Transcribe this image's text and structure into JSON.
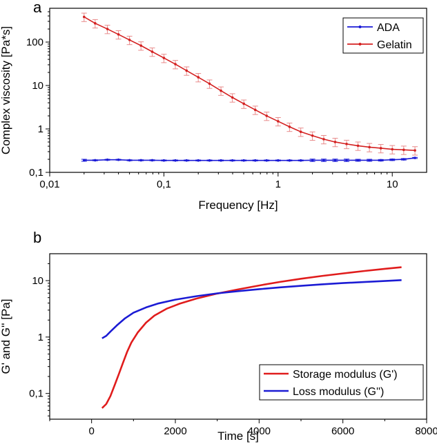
{
  "chart_data": [
    {
      "panel": "a",
      "type": "line",
      "title": "",
      "xlabel": "Frequency [Hz]",
      "ylabel": "Complex viscosity [Pa*s]",
      "xscale": "log",
      "yscale": "log",
      "xlim": [
        0.01,
        20
      ],
      "ylim": [
        0.1,
        600
      ],
      "xticks": [
        {
          "v": 0.01,
          "label": "0,01"
        },
        {
          "v": 0.1,
          "label": "0,1"
        },
        {
          "v": 1,
          "label": "1"
        },
        {
          "v": 10,
          "label": "10"
        }
      ],
      "yticks": [
        {
          "v": 0.1,
          "label": "0,1"
        },
        {
          "v": 1,
          "label": "1"
        },
        {
          "v": 10,
          "label": "10"
        },
        {
          "v": 100,
          "label": "100"
        }
      ],
      "legend_position": "top-right",
      "x": [
        0.02,
        0.025,
        0.032,
        0.04,
        0.05,
        0.063,
        0.079,
        0.1,
        0.126,
        0.158,
        0.2,
        0.251,
        0.316,
        0.398,
        0.501,
        0.631,
        0.794,
        1.0,
        1.26,
        1.58,
        2.0,
        2.51,
        3.16,
        3.98,
        5.01,
        6.31,
        7.94,
        10.0,
        12.6,
        15.8
      ],
      "series": [
        {
          "name": "ADA",
          "color": "#1a1ad6",
          "values": [
            0.19,
            0.19,
            0.195,
            0.195,
            0.19,
            0.19,
            0.19,
            0.188,
            0.188,
            0.188,
            0.188,
            0.188,
            0.188,
            0.188,
            0.188,
            0.188,
            0.188,
            0.188,
            0.188,
            0.188,
            0.19,
            0.19,
            0.19,
            0.19,
            0.19,
            0.19,
            0.19,
            0.195,
            0.2,
            0.215
          ],
          "errors": [
            0.01,
            0.005,
            0.005,
            0.005,
            0.005,
            0.005,
            0.005,
            0.005,
            0.005,
            0.005,
            0.005,
            0.005,
            0.005,
            0.005,
            0.005,
            0.005,
            0.005,
            0.005,
            0.005,
            0.005,
            0.012,
            0.012,
            0.012,
            0.012,
            0.01,
            0.01,
            0.008,
            0.008,
            0.008,
            0.006
          ]
        },
        {
          "name": "Gelatin",
          "color": "#d42020",
          "values": [
            380,
            270,
            200,
            150,
            112,
            83,
            60,
            43,
            31,
            22,
            15.5,
            11,
            7.6,
            5.3,
            3.8,
            2.75,
            2.0,
            1.5,
            1.12,
            0.86,
            0.7,
            0.58,
            0.5,
            0.45,
            0.41,
            0.38,
            0.36,
            0.34,
            0.33,
            0.32
          ]
        }
      ]
    },
    {
      "panel": "b",
      "type": "line",
      "title": "",
      "xlabel": "Time [s]",
      "ylabel": "G' and G'' [Pa]",
      "xscale": "linear",
      "yscale": "log",
      "xlim": [
        -1000,
        8000
      ],
      "ylim": [
        0.035,
        30
      ],
      "xticks": [
        {
          "v": 0,
          "label": "0"
        },
        {
          "v": 2000,
          "label": "2000"
        },
        {
          "v": 4000,
          "label": "4000"
        },
        {
          "v": 6000,
          "label": "6000"
        },
        {
          "v": 8000,
          "label": "8000"
        }
      ],
      "yticks": [
        {
          "v": 0.1,
          "label": "0,1"
        },
        {
          "v": 1,
          "label": "1"
        },
        {
          "v": 10,
          "label": "10"
        }
      ],
      "legend_position": "bottom-right",
      "series": [
        {
          "name": "Storage modulus (G')",
          "color": "#e01c1c",
          "x": [
            250,
            350,
            450,
            550,
            650,
            750,
            850,
            950,
            1100,
            1300,
            1500,
            1800,
            2100,
            2500,
            3000,
            3500,
            4000,
            4500,
            5000,
            5500,
            6000,
            6500,
            7000,
            7400
          ],
          "values": [
            0.055,
            0.065,
            0.09,
            0.14,
            0.22,
            0.35,
            0.55,
            0.8,
            1.2,
            1.8,
            2.4,
            3.2,
            3.9,
            4.8,
            5.9,
            7.0,
            8.2,
            9.5,
            10.8,
            12.1,
            13.4,
            14.8,
            16.2,
            17.3
          ]
        },
        {
          "name": "Loss modulus (G'')",
          "color": "#1b1bd4",
          "x": [
            250,
            350,
            450,
            600,
            800,
            1000,
            1300,
            1600,
            2000,
            2500,
            3000,
            3500,
            4000,
            4500,
            5000,
            5500,
            6000,
            6500,
            7000,
            7400
          ],
          "values": [
            0.95,
            1.05,
            1.25,
            1.6,
            2.15,
            2.7,
            3.35,
            3.95,
            4.6,
            5.3,
            5.95,
            6.5,
            7.05,
            7.6,
            8.1,
            8.6,
            9.05,
            9.45,
            9.85,
            10.2
          ]
        }
      ]
    }
  ]
}
